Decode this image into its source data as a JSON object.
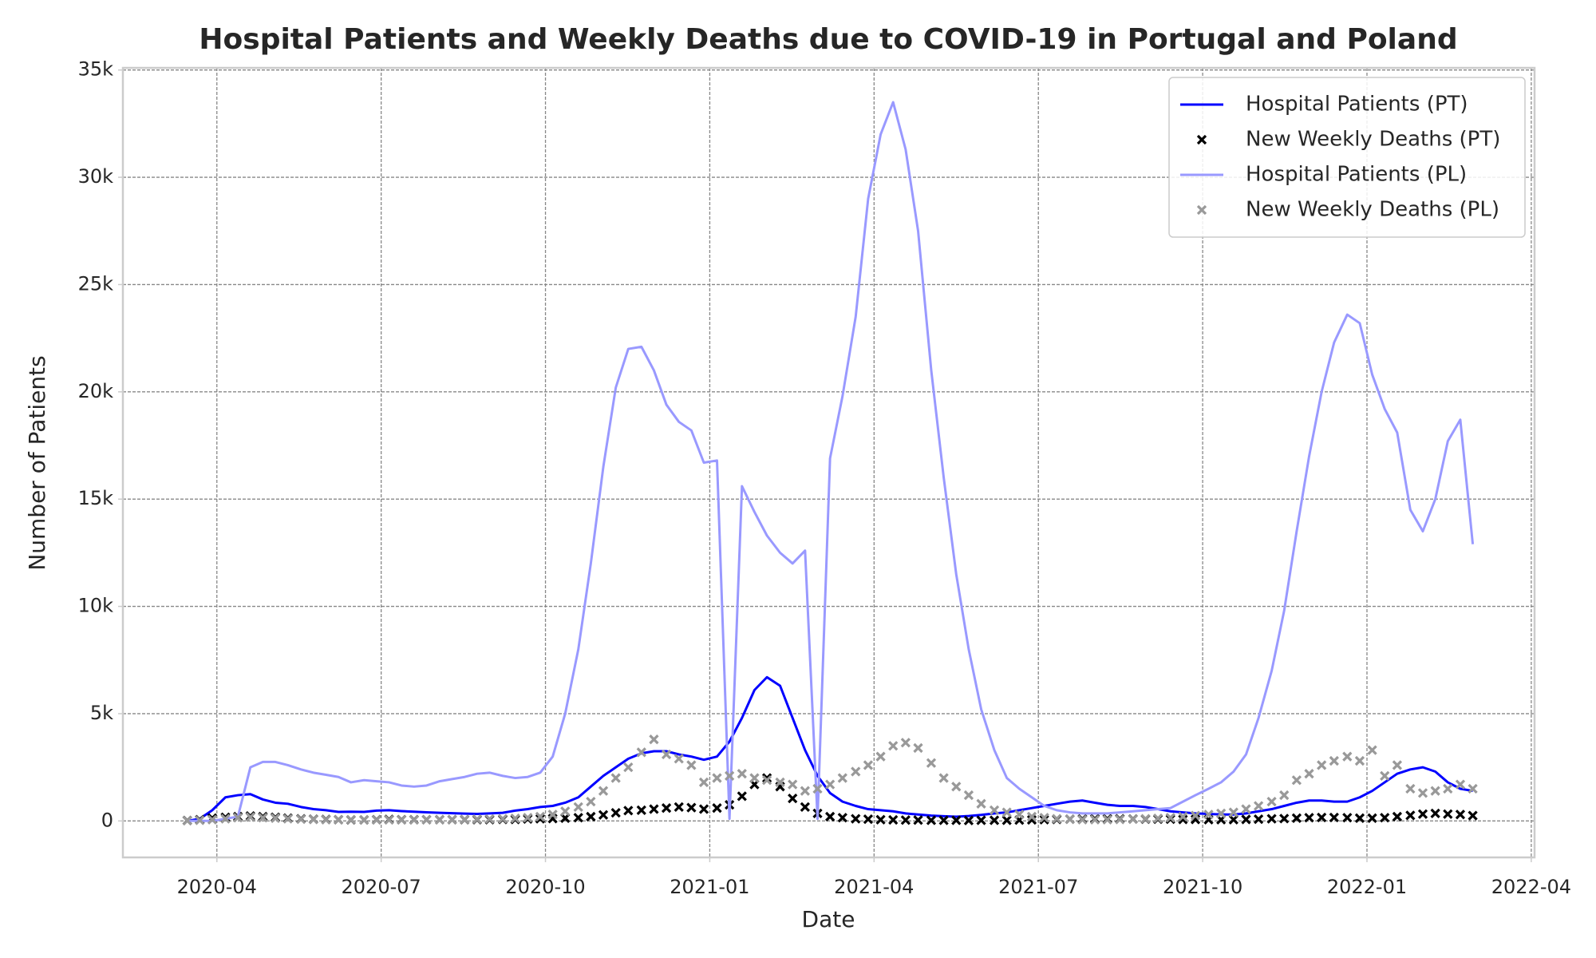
{
  "chart_data": {
    "type": "line",
    "title": "Hospital Patients and Weekly Deaths due to COVID-19 in Portugal and Poland",
    "x_label": "Date",
    "y_label": "Number of Patients",
    "grid": true,
    "legend": "upper right",
    "xlim": [
      2020.107,
      2022.255
    ],
    "ylim": [
      -1700,
      35100
    ],
    "xticks": [
      {
        "value": 2020.25,
        "label": "2020-04"
      },
      {
        "value": 2020.5,
        "label": "2020-07"
      },
      {
        "value": 2020.75,
        "label": "2020-10"
      },
      {
        "value": 2021.0,
        "label": "2021-01"
      },
      {
        "value": 2021.25,
        "label": "2021-04"
      },
      {
        "value": 2021.5,
        "label": "2021-07"
      },
      {
        "value": 2021.75,
        "label": "2021-10"
      },
      {
        "value": 2022.0,
        "label": "2022-01"
      },
      {
        "value": 2022.25,
        "label": "2022-04"
      }
    ],
    "yticks": [
      0,
      {
        "value": 5000,
        "label": "5k"
      },
      {
        "value": 10000,
        "label": "10k"
      },
      {
        "value": 15000,
        "label": "15k"
      },
      {
        "value": 20000,
        "label": "20k"
      },
      {
        "value": 25000,
        "label": "25k"
      },
      {
        "value": 30000,
        "label": "30k"
      },
      {
        "value": 35000,
        "label": "35k"
      }
    ],
    "x": [
      2020.205,
      2020.224,
      2020.243,
      2020.263,
      2020.282,
      2020.301,
      2020.32,
      2020.339,
      2020.358,
      2020.378,
      2020.397,
      2020.416,
      2020.435,
      2020.454,
      2020.474,
      2020.493,
      2020.512,
      2020.531,
      2020.55,
      2020.569,
      2020.589,
      2020.608,
      2020.627,
      2020.646,
      2020.665,
      2020.685,
      2020.704,
      2020.723,
      2020.742,
      2020.761,
      2020.78,
      2020.8,
      2020.819,
      2020.838,
      2020.857,
      2020.876,
      2020.896,
      2020.915,
      2020.934,
      2020.953,
      2020.972,
      2020.991,
      2021.011,
      2021.03,
      2021.049,
      2021.068,
      2021.087,
      2021.107,
      2021.126,
      2021.145,
      2021.164,
      2021.183,
      2021.202,
      2021.222,
      2021.241,
      2021.26,
      2021.279,
      2021.298,
      2021.317,
      2021.337,
      2021.356,
      2021.375,
      2021.394,
      2021.413,
      2021.433,
      2021.452,
      2021.471,
      2021.49,
      2021.509,
      2021.528,
      2021.548,
      2021.567,
      2021.586,
      2021.605,
      2021.624,
      2021.644,
      2021.663,
      2021.682,
      2021.701,
      2021.72,
      2021.739,
      2021.759,
      2021.778,
      2021.797,
      2021.816,
      2021.835,
      2021.855,
      2021.874,
      2021.893,
      2021.912,
      2021.931,
      2021.95,
      2021.97,
      2021.989,
      2022.008,
      2022.027,
      2022.046,
      2022.066,
      2022.085,
      2022.104,
      2022.123,
      2022.142,
      2022.161
    ],
    "series": [
      {
        "name": "Hospital Patients (PT)",
        "type": "line",
        "color": "#0000ff",
        "values": [
          0,
          100,
          500,
          1100,
          1200,
          1250,
          1000,
          850,
          800,
          650,
          550,
          500,
          420,
          430,
          420,
          480,
          500,
          460,
          430,
          400,
          380,
          360,
          340,
          330,
          350,
          380,
          480,
          550,
          650,
          700,
          850,
          1100,
          1600,
          2100,
          2500,
          2900,
          3150,
          3250,
          3250,
          3100,
          3000,
          2850,
          3000,
          3700,
          4800,
          6100,
          6700,
          6300,
          4800,
          3300,
          2100,
          1300,
          900,
          700,
          550,
          500,
          450,
          350,
          300,
          250,
          220,
          200,
          230,
          280,
          350,
          400,
          500,
          600,
          700,
          800,
          900,
          950,
          850,
          750,
          700,
          700,
          650,
          550,
          450,
          400,
          350,
          330,
          300,
          300,
          350,
          450,
          550,
          700,
          850,
          950,
          950,
          900,
          900,
          1100,
          1400,
          1800,
          2200,
          2400,
          2500,
          2300,
          1800,
          1500,
          1400
        ]
      },
      {
        "name": "New Weekly Deaths (PT)",
        "type": "scatter",
        "color": "#000000",
        "values": [
          20,
          60,
          130,
          170,
          200,
          230,
          200,
          170,
          130,
          100,
          80,
          70,
          60,
          50,
          50,
          60,
          70,
          60,
          60,
          60,
          60,
          60,
          60,
          60,
          60,
          70,
          70,
          90,
          100,
          110,
          130,
          150,
          200,
          280,
          380,
          480,
          500,
          550,
          600,
          650,
          620,
          550,
          600,
          750,
          1150,
          1700,
          2000,
          1600,
          1050,
          650,
          350,
          200,
          150,
          100,
          80,
          60,
          50,
          40,
          40,
          30,
          30,
          30,
          20,
          30,
          30,
          30,
          40,
          50,
          60,
          70,
          80,
          90,
          100,
          100,
          100,
          90,
          80,
          80,
          80,
          70,
          70,
          60,
          60,
          60,
          70,
          80,
          100,
          110,
          130,
          150,
          160,
          160,
          150,
          130,
          130,
          150,
          200,
          260,
          320,
          350,
          320,
          300,
          250
        ]
      },
      {
        "name": "Hospital Patients (PL)",
        "type": "line",
        "color": "#9999ff",
        "values": [
          0,
          0,
          0,
          100,
          200,
          2500,
          2750,
          2750,
          2600,
          2400,
          2250,
          2150,
          2050,
          1800,
          1900,
          1850,
          1800,
          1650,
          1600,
          1650,
          1850,
          1950,
          2050,
          2200,
          2250,
          2100,
          2000,
          2050,
          2250,
          3000,
          5000,
          8000,
          12000,
          16500,
          20200,
          22000,
          22100,
          21000,
          19400,
          18600,
          18200,
          16700,
          16800,
          100,
          15600,
          14400,
          13300,
          12500,
          12000,
          12600,
          100,
          16900,
          19800,
          23500,
          29000,
          32000,
          33500,
          31300,
          27500,
          21000,
          16000,
          11500,
          8000,
          5200,
          3300,
          2000,
          1500,
          1100,
          700,
          500,
          400,
          350,
          350,
          350,
          400,
          450,
          500,
          550,
          600,
          900,
          1200,
          1500,
          1800,
          2300,
          3100,
          4800,
          7000,
          9800,
          13500,
          17000,
          20000,
          22300,
          23600,
          23200,
          20800,
          19200,
          18100,
          14500,
          13500,
          15000,
          17700,
          18700,
          12900
        ]
      },
      {
        "name": "New Weekly Deaths (PL)",
        "type": "scatter",
        "color": "#999999",
        "values": [
          10,
          30,
          60,
          100,
          150,
          180,
          150,
          130,
          100,
          80,
          70,
          60,
          60,
          60,
          50,
          50,
          50,
          50,
          50,
          60,
          60,
          60,
          70,
          80,
          90,
          100,
          120,
          150,
          200,
          300,
          450,
          650,
          900,
          1400,
          2000,
          2500,
          3200,
          3800,
          3100,
          2900,
          2600,
          1800,
          2000,
          2100,
          2200,
          2000,
          1900,
          1800,
          1700,
          1400,
          1500,
          1700,
          2000,
          2300,
          2600,
          3000,
          3500,
          3650,
          3400,
          2700,
          2000,
          1600,
          1200,
          800,
          500,
          400,
          300,
          200,
          150,
          100,
          80,
          60,
          60,
          60,
          70,
          80,
          100,
          120,
          150,
          200,
          250,
          300,
          350,
          400,
          550,
          700,
          900,
          1200,
          1900,
          2200,
          2600,
          2800,
          3000,
          2800,
          3300,
          2100,
          2600,
          1500,
          1300,
          1400,
          1500,
          1700,
          1500
        ]
      }
    ]
  }
}
